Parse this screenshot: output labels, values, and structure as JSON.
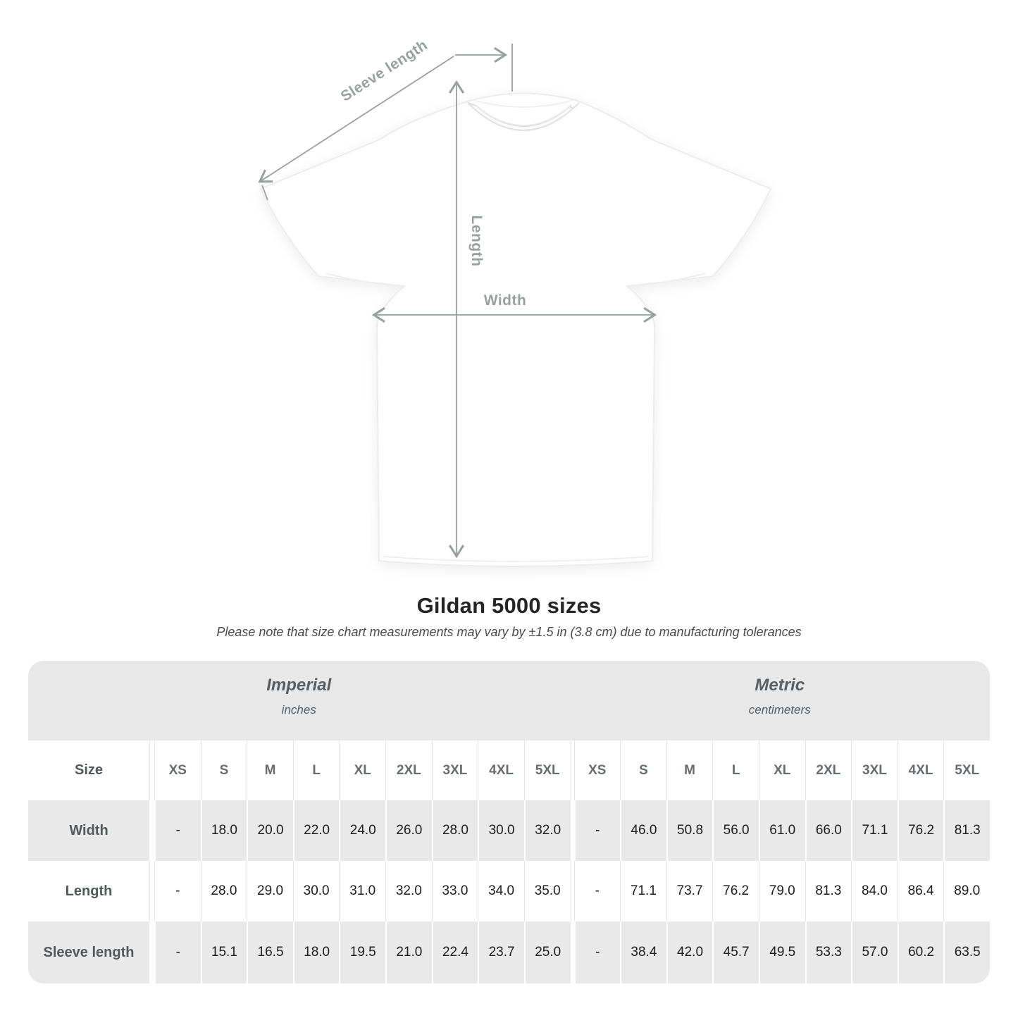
{
  "colors": {
    "annotation_gray": "#9b9fa2",
    "header_band_gray": "#e8e8e8",
    "row_stripe_gray": "#e9e9e9"
  },
  "diagram": {
    "labels": {
      "sleeve_length": "Sleeve length",
      "length": "Length",
      "width": "Width"
    }
  },
  "title": "Gildan 5000 sizes",
  "subtitle": "Please note that size chart measurements may vary by ±1.5 in (3.8 cm) due to manufacturing tolerances",
  "table": {
    "unit_groups": [
      {
        "label": "Imperial",
        "sublabel": "inches"
      },
      {
        "label": "Metric",
        "sublabel": "centimeters"
      }
    ],
    "size_column_header": "Size",
    "sizes": [
      "XS",
      "S",
      "M",
      "L",
      "XL",
      "2XL",
      "3XL",
      "4XL",
      "5XL"
    ],
    "rows": [
      {
        "label": "Width",
        "imperial": [
          "-",
          "18.0",
          "20.0",
          "22.0",
          "24.0",
          "26.0",
          "28.0",
          "30.0",
          "32.0"
        ],
        "metric": [
          "-",
          "46.0",
          "50.8",
          "56.0",
          "61.0",
          "66.0",
          "71.1",
          "76.2",
          "81.3"
        ]
      },
      {
        "label": "Length",
        "imperial": [
          "-",
          "28.0",
          "29.0",
          "30.0",
          "31.0",
          "32.0",
          "33.0",
          "34.0",
          "35.0"
        ],
        "metric": [
          "-",
          "71.1",
          "73.7",
          "76.2",
          "79.0",
          "81.3",
          "84.0",
          "86.4",
          "89.0"
        ]
      },
      {
        "label": "Sleeve length",
        "imperial": [
          "-",
          "15.1",
          "16.5",
          "18.0",
          "19.5",
          "21.0",
          "22.4",
          "23.7",
          "25.0"
        ],
        "metric": [
          "-",
          "38.4",
          "42.0",
          "45.7",
          "49.5",
          "53.3",
          "57.0",
          "60.2",
          "63.5"
        ]
      }
    ]
  }
}
